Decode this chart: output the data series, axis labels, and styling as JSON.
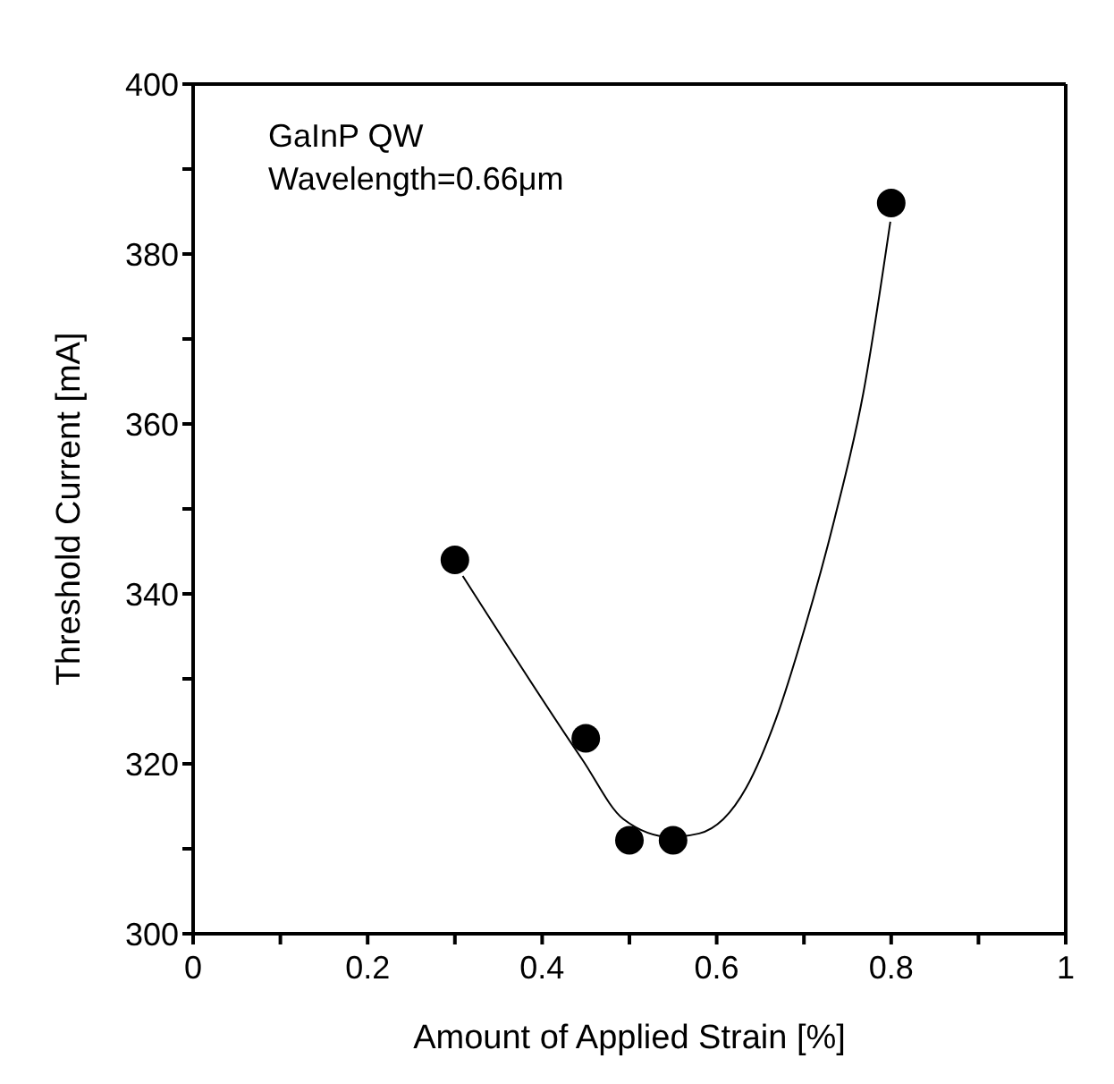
{
  "chart_data": {
    "type": "scatter",
    "xlabel": "Amount of Applied Strain [%]",
    "ylabel": "Threshold Current [mA]",
    "annotations": [
      "GaInP QW",
      "Wavelength=0.66μm"
    ],
    "xlim": [
      0,
      1
    ],
    "ylim": [
      300,
      400
    ],
    "xticks": [
      0,
      {
        "value": 0.1,
        "label": null
      },
      0.2,
      {
        "value": 0.3,
        "label": null
      },
      0.4,
      {
        "value": 0.5,
        "label": null
      },
      0.6,
      {
        "value": 0.7,
        "label": null
      },
      0.8,
      {
        "value": 0.9,
        "label": null
      },
      1
    ],
    "yticks": [
      300,
      {
        "value": 310,
        "label": null
      },
      320,
      {
        "value": 330,
        "label": null
      },
      340,
      {
        "value": 350,
        "label": null
      },
      360,
      {
        "value": 370,
        "label": null
      },
      380,
      {
        "value": 390,
        "label": null
      },
      400
    ],
    "grid": false,
    "legend": false,
    "marker": "circle",
    "series": [
      {
        "color": "#000000",
        "x": [
          0.3,
          0.45,
          0.5,
          0.55,
          0.8
        ],
        "values": [
          344,
          323,
          311,
          311,
          386
        ]
      },
      {
        "type": "line",
        "color": "#000000",
        "marker": "none",
        "line_style": "solid",
        "x": [
          0.309,
          0.446,
          0.493,
          0.547,
          0.58,
          0.634,
          0.668,
          0.701,
          0.735,
          0.768,
          0.799
        ],
        "values": [
          342.1,
          320.5,
          313.5,
          311.4,
          311.8,
          317.2,
          325.3,
          336,
          348.8,
          363.6,
          383.8
        ]
      }
    ]
  }
}
